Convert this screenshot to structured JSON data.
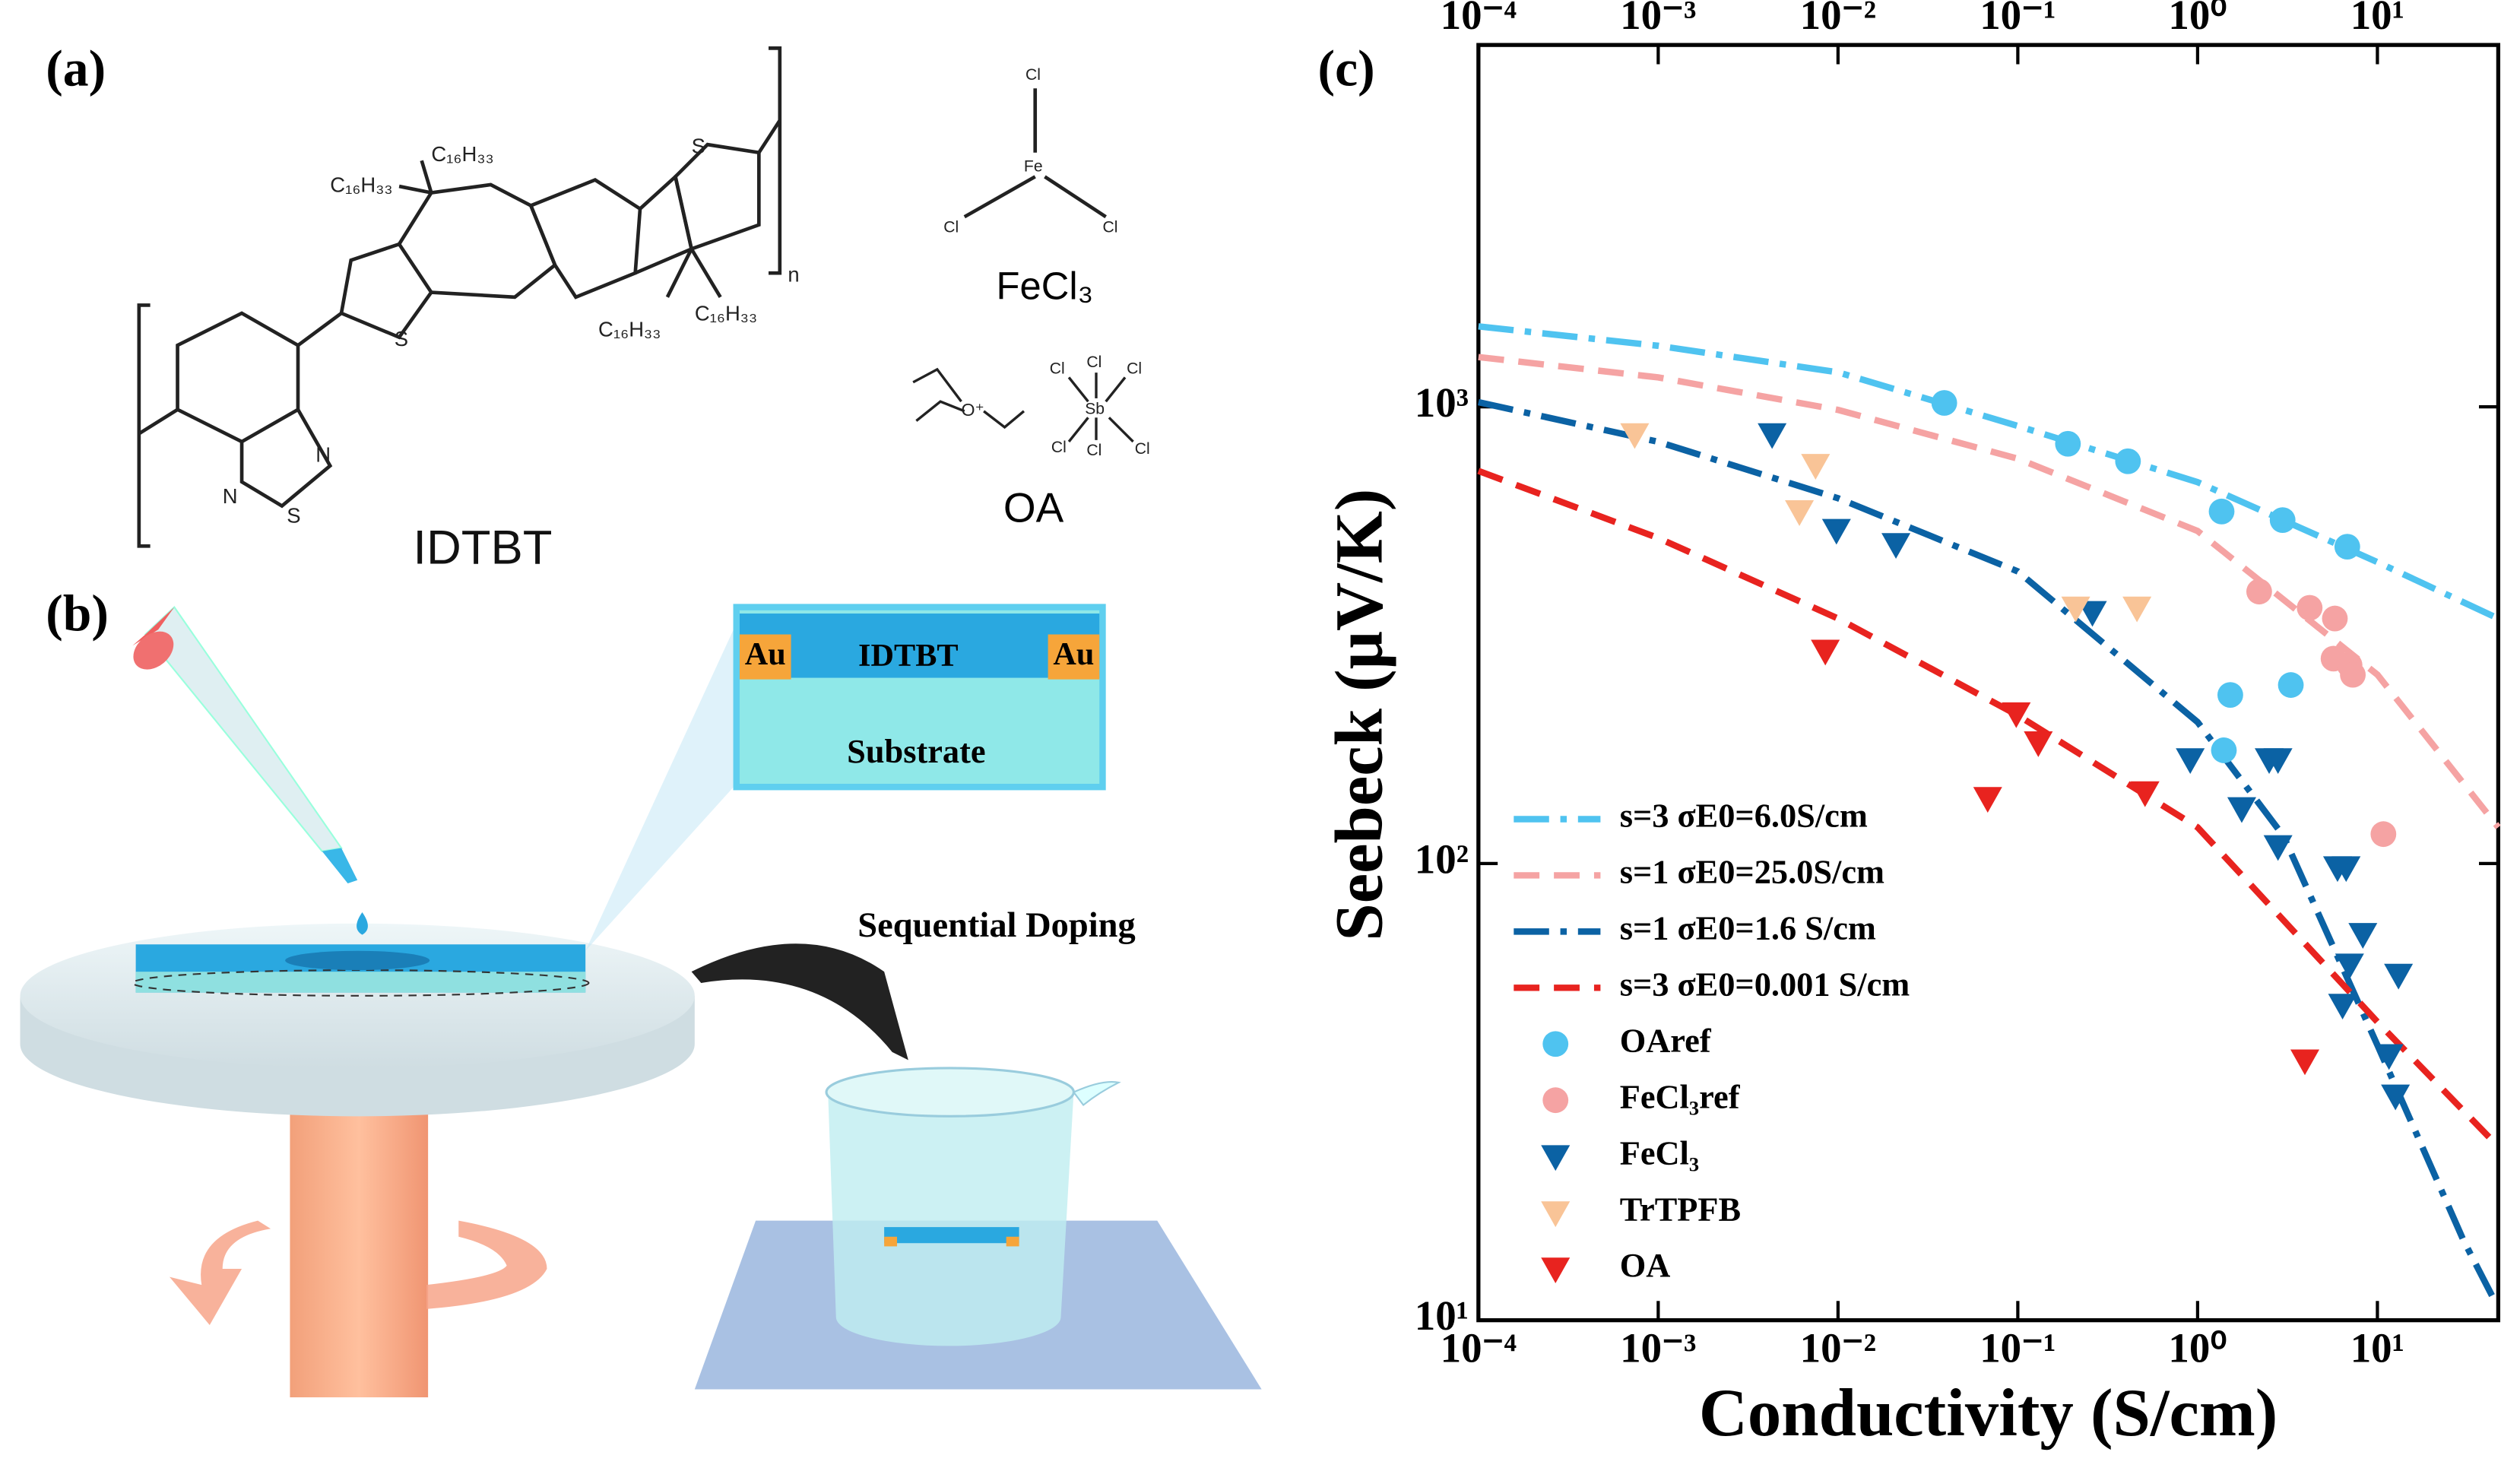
{
  "chart_data": {
    "type": "scatter",
    "label": "(c)",
    "xlabel": "Conductivity (S/cm)",
    "ylabel": "Seebeck (μV/K)",
    "xscale": "log",
    "yscale": "log",
    "xlim": [
      0.0001,
      47
    ],
    "ylim": [
      10,
      6200
    ],
    "xticks": [
      {
        "value": 0.0001,
        "label": "10⁻⁴"
      },
      {
        "value": 0.001,
        "label": "10⁻³"
      },
      {
        "value": 0.01,
        "label": "10⁻²"
      },
      {
        "value": 0.1,
        "label": "10⁻¹"
      },
      {
        "value": 1,
        "label": "10⁰"
      },
      {
        "value": 10,
        "label": "10¹"
      }
    ],
    "yticks": [
      {
        "value": 10,
        "label": "10¹"
      },
      {
        "value": 100,
        "label": "10²"
      },
      {
        "value": 1000,
        "label": "10³"
      }
    ],
    "top_axis": true,
    "series": [
      {
        "name": "s=3 σE0=6.0S/cm",
        "color": "#4fc3f0",
        "style": "dashdot",
        "x": [
          0.0001,
          0.001,
          0.01,
          0.1,
          1,
          10,
          47
        ],
        "values": [
          1500,
          1360,
          1190,
          908,
          684,
          457,
          344
        ]
      },
      {
        "name": "s=1 σE0=25.0S/cm",
        "color": "#f5a3a3",
        "style": "dashed",
        "x": [
          0.0001,
          0.001,
          0.01,
          0.1,
          1,
          10,
          47
        ],
        "values": [
          1285,
          1160,
          985,
          770,
          535,
          259,
          120
        ]
      },
      {
        "name": "s=1 σE0=1.6 S/cm",
        "color": "#0b62a4",
        "style": "dashdot",
        "x": [
          0.0001,
          0.001,
          0.01,
          0.1,
          1,
          3,
          10,
          30,
          45
        ],
        "values": [
          1024,
          838,
          631,
          436,
          204,
          115,
          40,
          15,
          11
        ]
      },
      {
        "name": "s=3 σE0=0.001 S/cm",
        "color": "#e8231f",
        "style": "dashed",
        "x": [
          0.0001,
          0.001,
          0.01,
          0.1,
          1,
          10,
          47
        ],
        "values": [
          724,
          516,
          344,
          211,
          120,
          45,
          24
        ]
      },
      {
        "name": "OAref",
        "color": "#4fc3f0",
        "style": "circle",
        "x": [
          0.039,
          0.19,
          0.41,
          1.36,
          2.97,
          6.8,
          1.52,
          3.3,
          1.4
        ],
        "values": [
          1020,
          830,
          760,
          590,
          565,
          494,
          234,
          246,
          177
        ]
      },
      {
        "name": "FeCl₃ref",
        "color": "#f5a3a3",
        "style": "circle",
        "x": [
          2.2,
          4.2,
          5.8,
          5.7,
          7.0,
          7.3,
          10.8
        ],
        "values": [
          394,
          363,
          344,
          281,
          272,
          259,
          116
        ]
      },
      {
        "name": "FeCl₃",
        "color": "#0b62a4",
        "style": "triangle",
        "x": [
          0.0043,
          0.0098,
          0.021,
          0.26,
          0.91,
          1.76,
          2.5,
          2.8,
          2.8,
          6.0,
          6.7,
          8.3,
          7.0,
          6.4,
          13.1,
          11.6,
          12.6
        ],
        "values": [
          870,
          537,
          500,
          355,
          169,
          132,
          169,
          169,
          109,
          98,
          98,
          70,
          60,
          49,
          57,
          38,
          31
        ]
      },
      {
        "name": "TrTPFB",
        "color": "#f9c497",
        "style": "triangle",
        "x": [
          0.00074,
          0.0075,
          0.0061,
          0.21,
          0.46
        ],
        "values": [
          870,
          745,
          590,
          363,
          363
        ]
      },
      {
        "name": "OA",
        "color": "#e8231f",
        "style": "triangle",
        "x": [
          0.0085,
          0.098,
          0.13,
          0.068,
          0.51,
          3.95
        ],
        "values": [
          292,
          213,
          184,
          139,
          143,
          37
        ]
      }
    ]
  },
  "panel_a": {
    "label": "(a)",
    "polymer": "IDTBT",
    "side_chains": [
      "C₁₆H₃₃",
      "C₁₆H₃₃",
      "C₁₆H₃₃",
      "C₁₆H₃₃"
    ],
    "atoms": [
      "S",
      "S",
      "S",
      "N",
      "N",
      "n"
    ],
    "fecl3_atoms": [
      "Cl",
      "Fe",
      "Cl",
      "Cl"
    ],
    "fecl3": "FeCl₃",
    "oa_atoms": [
      "O⁺",
      "Sb",
      "Cl",
      "Cl",
      "Cl",
      "Cl",
      "Cl",
      "Cl"
    ],
    "oa": "OA"
  },
  "panel_b": {
    "label": "(b)",
    "inset": [
      "Au",
      "IDTBT",
      "Au",
      "Substrate"
    ],
    "step": "Sequential Doping"
  }
}
